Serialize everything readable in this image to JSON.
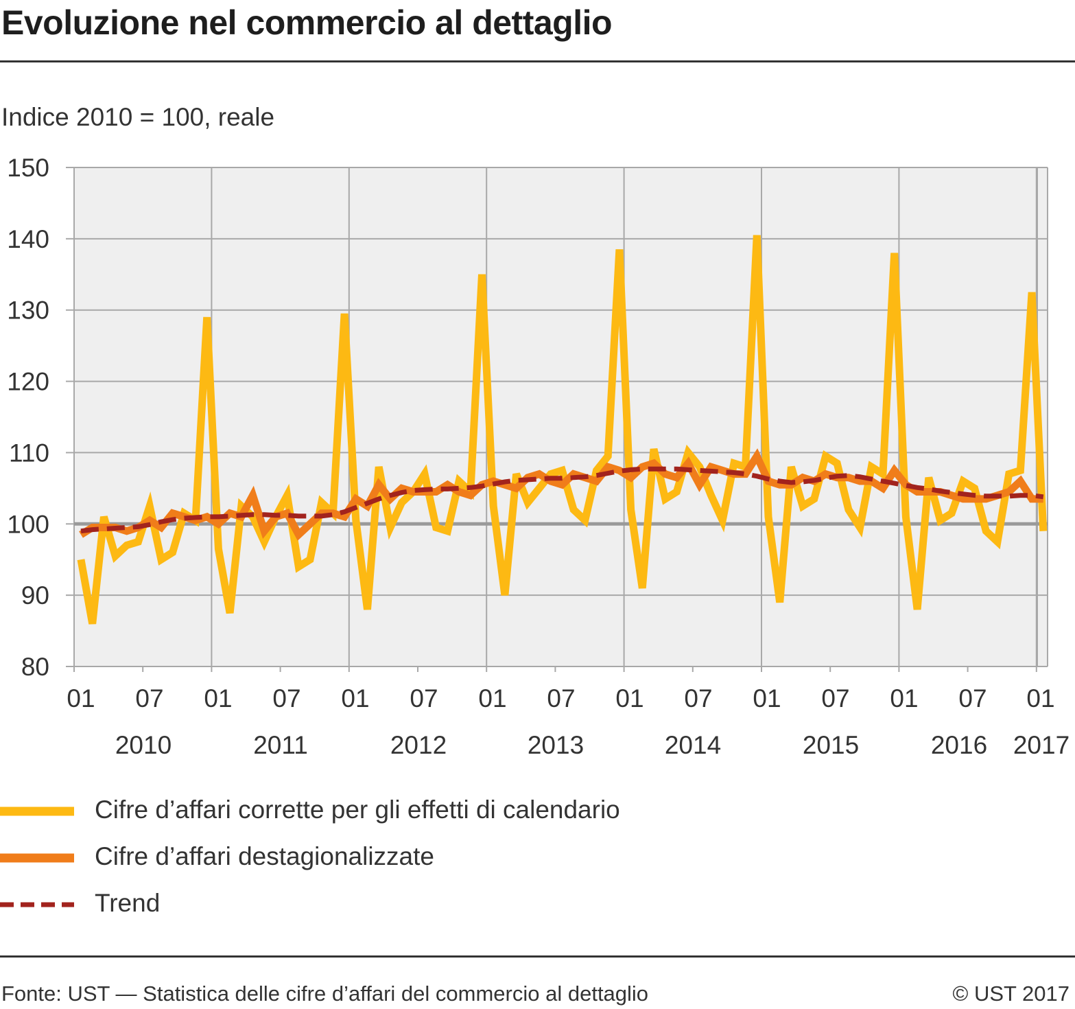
{
  "title": "Evoluzione nel commercio al dettaglio",
  "subtitle": "Indice 2010 = 100, reale",
  "footer": {
    "source": "Fonte: UST — Statistica delle cifre d’affari del commercio al dettaglio",
    "copyright": "© UST 2017"
  },
  "colors": {
    "calendar": "#FDB913",
    "seasonal": "#F07D1A",
    "trend": "#A2231D",
    "plot_bg": "#EFEFEF",
    "grid": "#A8A8A8"
  },
  "legend": [
    {
      "label": "Cifre d’affari corrette per gli effetti di calendario",
      "style": "solid-thick",
      "color": "#FDB913"
    },
    {
      "label": "Cifre d’affari destagionalizzate",
      "style": "solid-thick",
      "color": "#F07D1A"
    },
    {
      "label": "Trend",
      "style": "dashed",
      "color": "#A2231D"
    }
  ],
  "chart_data": {
    "type": "line",
    "x_unit": "month",
    "x_start": "2010-01",
    "x_end": "2017-01",
    "ylim": [
      80,
      150
    ],
    "yticks": [
      80,
      90,
      100,
      110,
      120,
      130,
      140,
      150
    ],
    "grid": true,
    "reference_line": 100,
    "month_ticks": [
      "01",
      "07",
      "01",
      "07",
      "01",
      "07",
      "01",
      "07",
      "01",
      "07",
      "01",
      "07",
      "01",
      "07",
      "01"
    ],
    "year_labels": [
      "2010",
      "2011",
      "2012",
      "2013",
      "2014",
      "2015",
      "2016",
      "2017"
    ],
    "legend_position": "bottom",
    "series": [
      {
        "name": "Cifre d’affari corrette per gli effetti di calendario",
        "values": [
          95,
          86,
          101,
          95.5,
          97,
          97.5,
          102.5,
          95,
          96,
          101.5,
          100.5,
          129,
          96.5,
          87.5,
          102.5,
          101,
          97.5,
          101,
          104,
          94,
          95,
          103,
          101.5,
          129.5,
          100.5,
          88,
          108,
          99.5,
          103,
          104.5,
          107,
          99.5,
          99,
          106,
          104.5,
          135,
          102.5,
          90,
          107,
          103,
          105,
          107,
          107.5,
          102,
          100.5,
          107.5,
          109.5,
          138.5,
          102,
          91,
          110.5,
          103.5,
          104.5,
          110,
          108,
          104,
          100.5,
          108.5,
          108,
          140.5,
          101,
          89,
          108,
          102.5,
          103.5,
          109.5,
          108.5,
          102,
          99.5,
          108,
          107,
          138,
          101,
          88,
          106.5,
          100.5,
          101.5,
          106,
          105,
          99,
          97.5,
          107,
          107.5,
          132.5,
          99
        ]
      },
      {
        "name": "Cifre d’affari destagionalizzate",
        "values": [
          98.5,
          99.5,
          99.5,
          99.5,
          99,
          99.5,
          100.5,
          99.5,
          101.5,
          101,
          100.5,
          101,
          100,
          101.5,
          101,
          104,
          99,
          101,
          101.5,
          98.5,
          100,
          101.5,
          101.5,
          101,
          103.5,
          102.5,
          105.5,
          103.5,
          105,
          104.5,
          104.5,
          104.5,
          105.5,
          104.5,
          104,
          105.5,
          106,
          105.5,
          105,
          106.5,
          107,
          106,
          105.5,
          107,
          106.5,
          106,
          108,
          107.5,
          106.5,
          108,
          108.5,
          107,
          106.5,
          108.5,
          105.5,
          108,
          107.5,
          107,
          107,
          109.5,
          106,
          105.5,
          105.5,
          106.5,
          106,
          107,
          106.5,
          106.5,
          106,
          106,
          105,
          107.5,
          105.5,
          104.5,
          104.5,
          104.5,
          104,
          103.5,
          103.5,
          103.5,
          104,
          104.5,
          106,
          103.5,
          103.5
        ]
      },
      {
        "name": "Trend",
        "values": [
          99,
          99.2,
          99.3,
          99.4,
          99.5,
          99.6,
          99.9,
          100.3,
          100.6,
          100.8,
          100.9,
          101,
          101,
          101.1,
          101.2,
          101.3,
          101.3,
          101.2,
          101.2,
          101.1,
          101.1,
          101.1,
          101.3,
          101.7,
          102.3,
          102.9,
          103.5,
          104,
          104.4,
          104.7,
          104.8,
          104.9,
          104.9,
          105,
          105.1,
          105.3,
          105.6,
          105.9,
          106.1,
          106.2,
          106.3,
          106.4,
          106.4,
          106.5,
          106.6,
          106.8,
          107.1,
          107.4,
          107.6,
          107.7,
          107.7,
          107.7,
          107.7,
          107.6,
          107.5,
          107.4,
          107.3,
          107.2,
          107,
          106.7,
          106.3,
          106,
          105.8,
          105.9,
          106.1,
          106.4,
          106.7,
          106.8,
          106.6,
          106.3,
          106,
          105.7,
          105.4,
          105.1,
          104.9,
          104.6,
          104.4,
          104.2,
          104,
          103.9,
          103.9,
          103.9,
          104,
          104,
          103.8
        ]
      }
    ]
  }
}
